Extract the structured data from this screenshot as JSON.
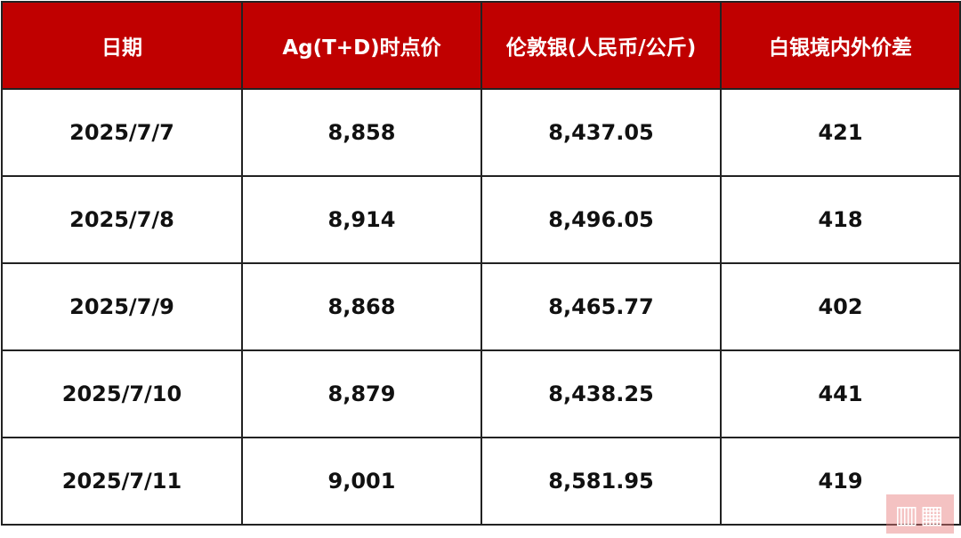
{
  "table": {
    "headers": [
      "日期",
      "Ag(T+D)时点价",
      "伦敦银(人民币/公斤)",
      "白银境内外价差"
    ],
    "rows": [
      [
        "2025/7/7",
        "8,858",
        "8,437.05",
        "421"
      ],
      [
        "2025/7/8",
        "8,914",
        "8,496.05",
        "418"
      ],
      [
        "2025/7/9",
        "8,868",
        "8,465.77",
        "402"
      ],
      [
        "2025/7/10",
        "8,879",
        "8,438.25",
        "441"
      ],
      [
        "2025/7/11",
        "9,001",
        "8,581.95",
        "419"
      ]
    ]
  },
  "colors": {
    "header_bg": "#c00000",
    "header_text": "#ffffff",
    "watermark": "#e87878"
  }
}
